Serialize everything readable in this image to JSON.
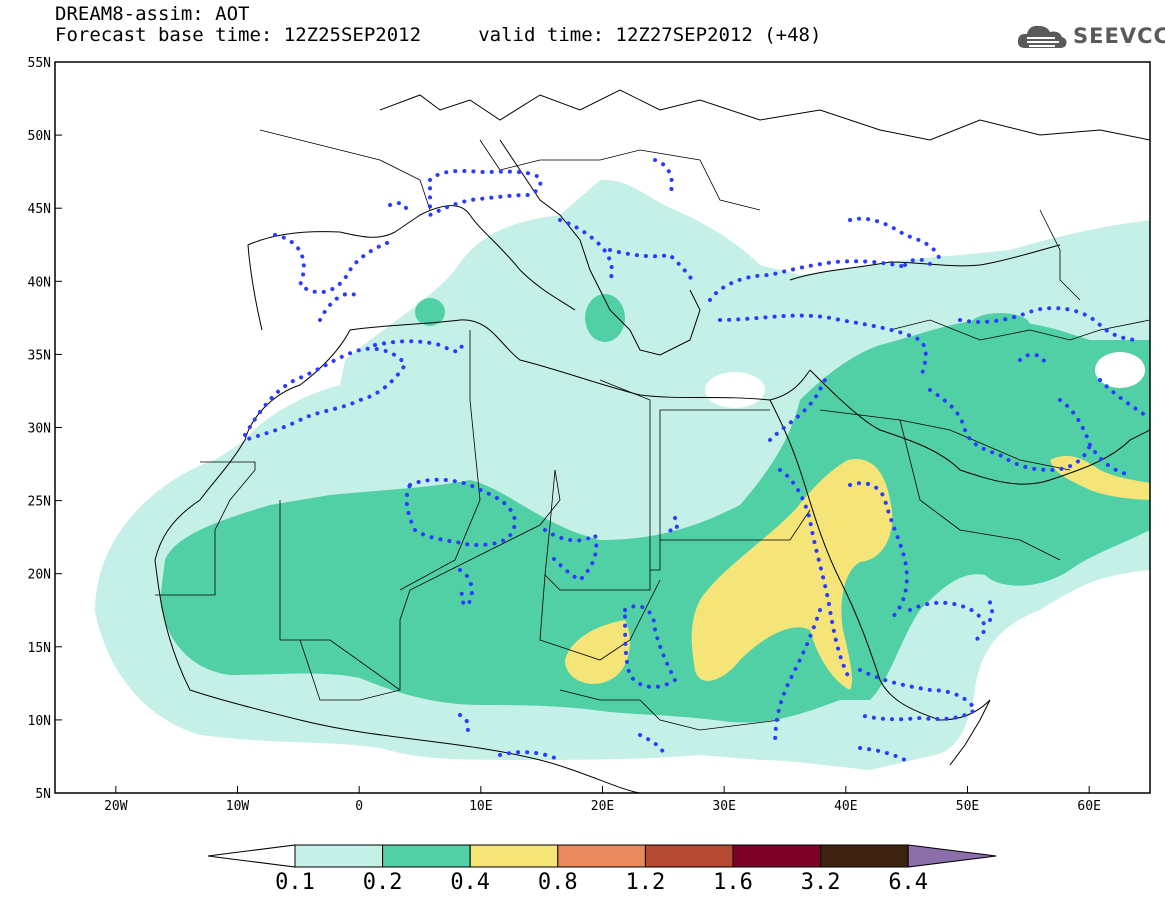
{
  "header": {
    "title_line1": "DREAM8-assim: AOT",
    "title_line2": "Forecast base time: 12Z25SEP2012     valid time: 12Z27SEP2012 (+48)",
    "logo_text": "SEEVCCC",
    "logo_icon": "cloud-icon"
  },
  "map": {
    "projection": "lat-lon",
    "lon_range": [
      -25,
      65
    ],
    "lat_range": [
      5,
      55
    ],
    "lon_labels": [
      "20W",
      "10W",
      "0",
      "10E",
      "20E",
      "30E",
      "40E",
      "50E",
      "60E"
    ],
    "lat_labels": [
      "55N",
      "50N",
      "45N",
      "40N",
      "35N",
      "30N",
      "25N",
      "20N",
      "15N",
      "10N",
      "5N"
    ],
    "contour_line_color": "#2b3bff",
    "coastline_color": "#000000"
  },
  "colorbar": {
    "levels": [
      "0.1",
      "0.2",
      "0.4",
      "0.8",
      "1.2",
      "1.6",
      "3.2",
      "6.4"
    ],
    "colors": [
      "#ffffff",
      "#c5f0e8",
      "#52d0a5",
      "#f5e478",
      "#e88a5e",
      "#b54a32",
      "#7c0028",
      "#3d2210",
      "#8a6fa8"
    ]
  }
}
